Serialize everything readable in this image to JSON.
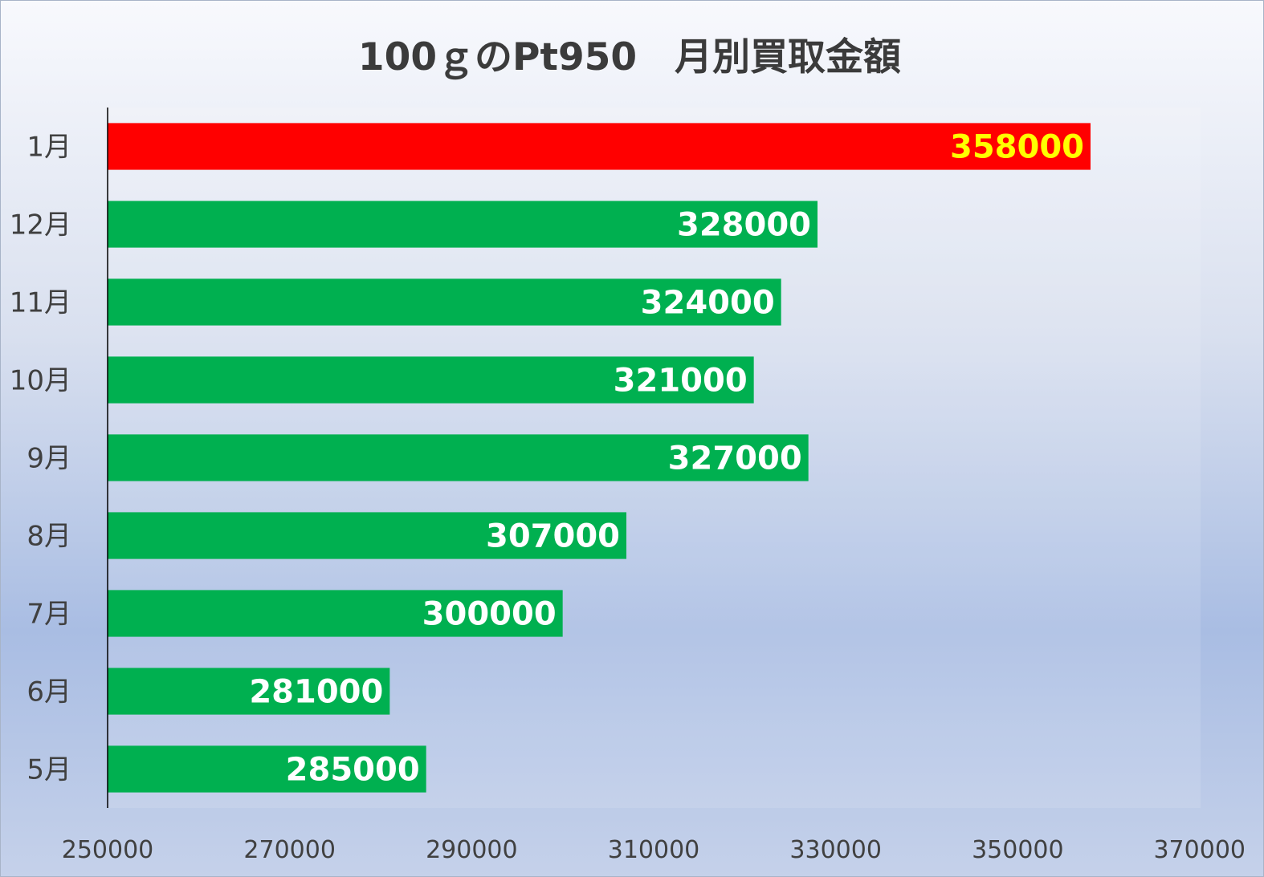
{
  "chart_data": {
    "type": "bar",
    "orientation": "horizontal",
    "title": "100ｇのPt950　月別買取金額",
    "categories": [
      "1月",
      "12月",
      "11月",
      "10月",
      "9月",
      "8月",
      "7月",
      "6月",
      "5月"
    ],
    "values": [
      358000,
      328000,
      324000,
      321000,
      327000,
      307000,
      300000,
      281000,
      285000
    ],
    "bar_colors": [
      "#ff0000",
      "#00b050",
      "#00b050",
      "#00b050",
      "#00b050",
      "#00b050",
      "#00b050",
      "#00b050",
      "#00b050"
    ],
    "label_colors": [
      "#ffff00",
      "#ffffff",
      "#ffffff",
      "#ffffff",
      "#ffffff",
      "#ffffff",
      "#ffffff",
      "#ffffff",
      "#ffffff"
    ],
    "xlim": [
      250000,
      370000
    ],
    "xticks": [
      250000,
      270000,
      290000,
      310000,
      330000,
      350000,
      370000
    ],
    "xlabel": "",
    "ylabel": "",
    "grid": false,
    "legend": "none",
    "data_labels": "inside-end"
  }
}
